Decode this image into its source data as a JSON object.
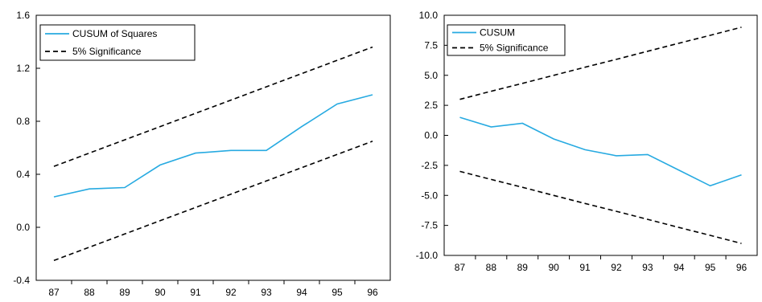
{
  "chart_data": [
    {
      "type": "line",
      "x": [
        "87",
        "88",
        "89",
        "90",
        "91",
        "92",
        "93",
        "94",
        "95",
        "96"
      ],
      "ylim": [
        -0.4,
        1.6
      ],
      "yticks": [
        "1.6",
        "1.2",
        "0.8",
        "0.4",
        "0.0",
        "-0.4"
      ],
      "series": [
        {
          "name": "CUSUM of Squares",
          "style": "solid",
          "color": "#27aae1",
          "values": [
            0.23,
            0.29,
            0.3,
            0.47,
            0.56,
            0.58,
            0.58,
            0.76,
            0.93,
            1.0
          ]
        },
        {
          "name": "5% Significance",
          "style": "dashed",
          "color": "#000000",
          "values": [
            0.46,
            0.56,
            0.66,
            0.76,
            0.86,
            0.96,
            1.06,
            1.16,
            1.26,
            1.36
          ]
        },
        {
          "name": "",
          "style": "dashed",
          "color": "#000000",
          "values": [
            -0.25,
            -0.15,
            -0.05,
            0.05,
            0.15,
            0.25,
            0.35,
            0.45,
            0.55,
            0.65
          ]
        }
      ],
      "legend": "top-left",
      "grid": false
    },
    {
      "type": "line",
      "x": [
        "87",
        "88",
        "89",
        "90",
        "91",
        "92",
        "93",
        "94",
        "95",
        "96"
      ],
      "ylim": [
        -10.0,
        10.0
      ],
      "yticks": [
        "10.0",
        "7.5",
        "5.0",
        "2.5",
        "0.0",
        "-2.5",
        "-5.0",
        "-7.5",
        "-10.0"
      ],
      "series": [
        {
          "name": "CUSUM",
          "style": "solid",
          "color": "#27aae1",
          "values": [
            1.5,
            0.7,
            1.0,
            -0.3,
            -1.2,
            -1.7,
            -1.6,
            -2.9,
            -4.2,
            -3.3
          ]
        },
        {
          "name": "5% Significance",
          "style": "dashed",
          "color": "#000000",
          "values": [
            3.0,
            3.67,
            4.33,
            5.0,
            5.67,
            6.33,
            7.0,
            7.67,
            8.33,
            9.0
          ]
        },
        {
          "name": "",
          "style": "dashed",
          "color": "#000000",
          "values": [
            -3.0,
            -3.67,
            -4.33,
            -5.0,
            -5.67,
            -6.33,
            -7.0,
            -7.67,
            -8.33,
            -9.0
          ]
        }
      ],
      "legend": "top-left",
      "grid": false
    }
  ]
}
